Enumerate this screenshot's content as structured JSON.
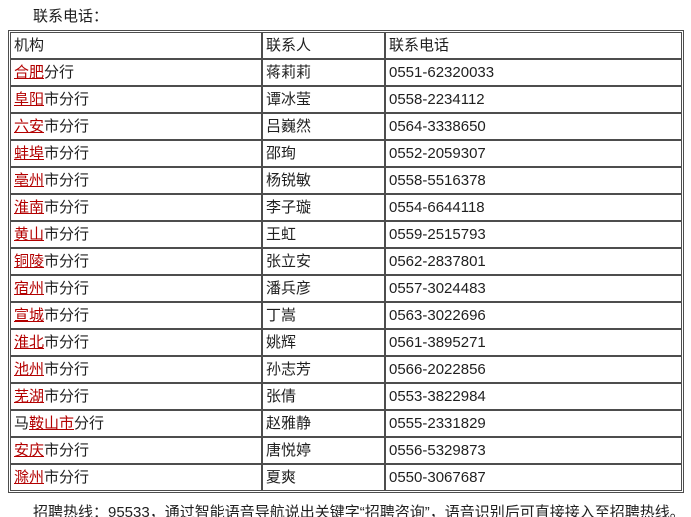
{
  "page": {
    "title": "联系电话：",
    "footer_note": "招聘热线：95533，通过智能语音导航说出关键字“招聘咨询”，语音识别后可直接接入至招聘热线。"
  },
  "colors": {
    "link_red": "#b30000",
    "border_gray": "#4d4d4d",
    "text_black": "#1f1f1f"
  },
  "table": {
    "headers": [
      "机构",
      "联系人",
      "联系电话"
    ],
    "rows": [
      {
        "org_prefix": "",
        "org_link": "合肥",
        "org_suffix": "分行",
        "contact": "蒋莉莉",
        "phone": "0551-62320033"
      },
      {
        "org_prefix": "",
        "org_link": "阜阳",
        "org_suffix": "市分行",
        "contact": "谭冰莹",
        "phone": "0558-2234112"
      },
      {
        "org_prefix": "",
        "org_link": "六安",
        "org_suffix": "市分行",
        "contact": "吕巍然",
        "phone": "0564-3338650"
      },
      {
        "org_prefix": "",
        "org_link": "蚌埠",
        "org_suffix": "市分行",
        "contact": "邵珣",
        "phone": "0552-2059307"
      },
      {
        "org_prefix": "",
        "org_link": "亳州",
        "org_suffix": "市分行",
        "contact": "杨锐敏",
        "phone": "0558-5516378"
      },
      {
        "org_prefix": "",
        "org_link": "淮南",
        "org_suffix": "市分行",
        "contact": "李子璇",
        "phone": "0554-6644118"
      },
      {
        "org_prefix": "",
        "org_link": "黄山",
        "org_suffix": "市分行",
        "contact": "王虹",
        "phone": "0559-2515793"
      },
      {
        "org_prefix": "",
        "org_link": "铜陵",
        "org_suffix": "市分行",
        "contact": "张立安",
        "phone": "0562-2837801"
      },
      {
        "org_prefix": "",
        "org_link": "宿州",
        "org_suffix": "市分行",
        "contact": "潘兵彦",
        "phone": "0557-3024483"
      },
      {
        "org_prefix": "",
        "org_link": "宣城",
        "org_suffix": "市分行",
        "contact": "丁嵩",
        "phone": "0563-3022696"
      },
      {
        "org_prefix": "",
        "org_link": "淮北",
        "org_suffix": "市分行",
        "contact": "姚辉",
        "phone": "0561-3895271"
      },
      {
        "org_prefix": "",
        "org_link": "池州",
        "org_suffix": "市分行",
        "contact": "孙志芳",
        "phone": "0566-2022856"
      },
      {
        "org_prefix": "",
        "org_link": "芜湖",
        "org_suffix": "市分行",
        "contact": "张倩",
        "phone": "0553-3822984"
      },
      {
        "org_prefix": "马",
        "org_link": "鞍山市",
        "org_suffix": "分行",
        "contact": "赵雅静",
        "phone": "0555-2331829"
      },
      {
        "org_prefix": "",
        "org_link": "安庆",
        "org_suffix": "市分行",
        "contact": "唐悦婷",
        "phone": "0556-5329873"
      },
      {
        "org_prefix": "",
        "org_link": "滁州",
        "org_suffix": "市分行",
        "contact": "夏爽",
        "phone": "0550-3067687"
      }
    ]
  }
}
